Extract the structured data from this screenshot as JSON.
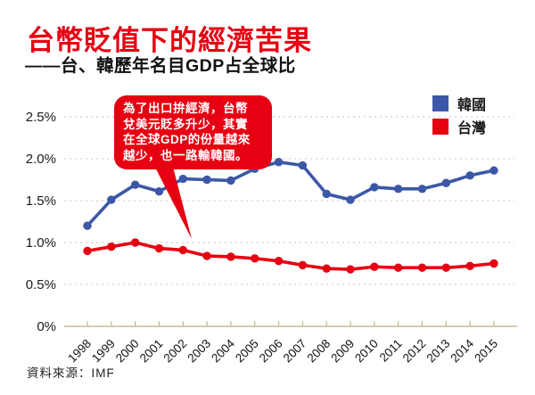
{
  "header": {
    "title": "台幣貶值下的經濟苦果",
    "subtitle": "——台、韓歷年名目GDP占全球比"
  },
  "legend": [
    {
      "label": "韓國",
      "color": "#3b57a6"
    },
    {
      "label": "台灣",
      "color": "#e60012"
    }
  ],
  "annotation": {
    "text": "為了出口拚經濟，台幣\n兌美元貶多升少，其實\n在全球GDP的份量越來\n越少，也一路輸韓國。"
  },
  "source": "資料來源：IMF",
  "colors": {
    "korea": "#3b57a6",
    "taiwan": "#e60012",
    "axis": "#c8ba8b",
    "grid": "#ddd8c8",
    "title_red": "#e60012"
  },
  "chart_data": {
    "type": "line",
    "title": "台、韓歷年名目GDP占全球比",
    "x": [
      "1998",
      "1999",
      "2000",
      "2001",
      "2002",
      "2003",
      "2004",
      "2005",
      "2006",
      "2007",
      "2008",
      "2009",
      "2010",
      "2011",
      "2012",
      "2013",
      "2014",
      "2015"
    ],
    "series": [
      {
        "name": "韓國",
        "color": "#3b57a6",
        "values": [
          1.2,
          1.51,
          1.69,
          1.61,
          1.76,
          1.75,
          1.74,
          1.88,
          1.96,
          1.92,
          1.58,
          1.51,
          1.66,
          1.64,
          1.64,
          1.71,
          1.8,
          1.86
        ]
      },
      {
        "name": "台灣",
        "color": "#e60012",
        "values": [
          0.9,
          0.95,
          1.0,
          0.93,
          0.91,
          0.84,
          0.83,
          0.81,
          0.78,
          0.73,
          0.69,
          0.68,
          0.71,
          0.7,
          0.7,
          0.7,
          0.72,
          0.75
        ]
      }
    ],
    "ylabel": "",
    "xlabel": "",
    "ylim": [
      0,
      2.5
    ],
    "yticks": [
      "0%",
      "0.5%",
      "1.0%",
      "1.5%",
      "2.0%",
      "2.5%"
    ],
    "grid": "dotted-horizontal",
    "legend_position": "top-right"
  }
}
